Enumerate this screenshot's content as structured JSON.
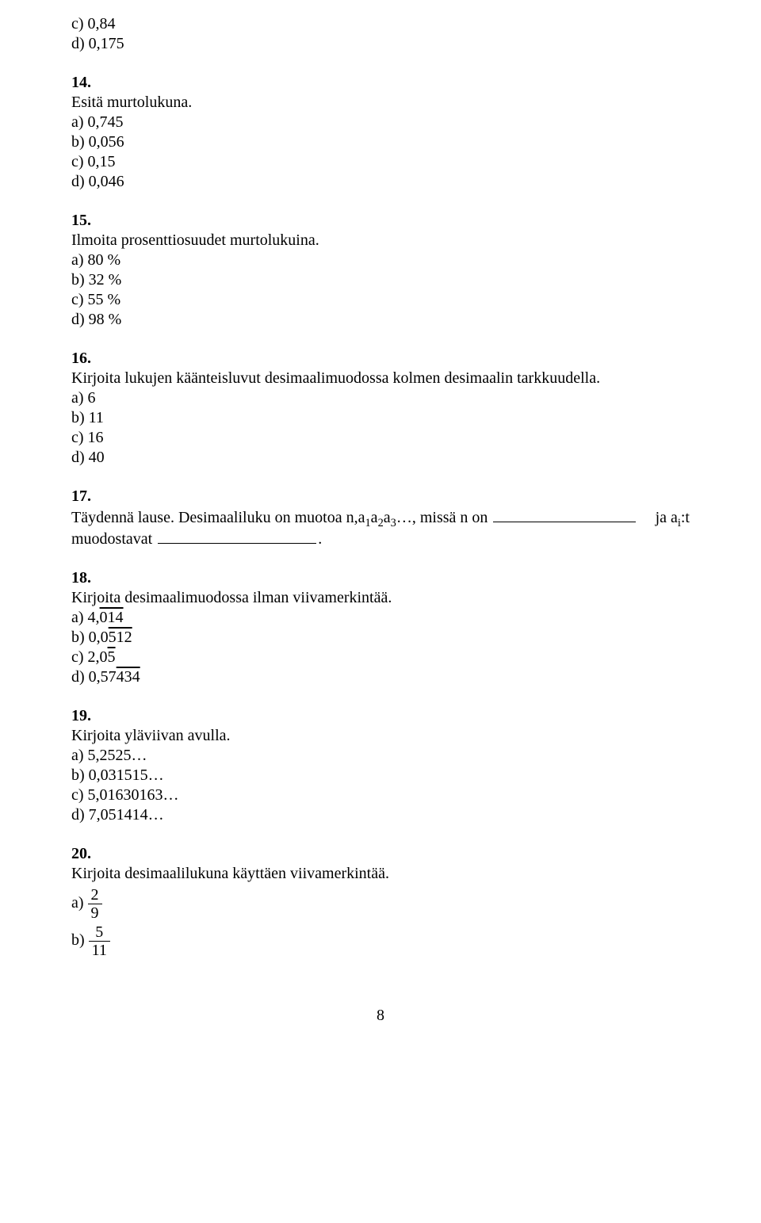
{
  "pre": {
    "c": "c)  0,84",
    "d": "d)  0,175"
  },
  "q14": {
    "num": "14.",
    "title": "Esitä murtolukuna.",
    "a": "a)  0,745",
    "b": "b)  0,056",
    "c": "c)  0,15",
    "d": "d)  0,046"
  },
  "q15": {
    "num": "15.",
    "title": "Ilmoita prosenttiosuudet murtolukuina.",
    "a": "a)  80 %",
    "b": "b)  32 %",
    "c": "c)  55 %",
    "d": "d)  98 %"
  },
  "q16": {
    "num": "16.",
    "title": "Kirjoita lukujen käänteisluvut desimaalimuodossa kolmen desimaalin tarkkuudella.",
    "a": "a)  6",
    "b": "b)  11",
    "c": "c)  16",
    "d": "d)  40"
  },
  "q17": {
    "num": "17.",
    "lead": "Täydennä lause. Desimaaliluku on muotoa ",
    "expr_n": "n,",
    "expr_a1": "a",
    "s1": "1",
    "expr_a2": "a",
    "s2": "2",
    "expr_a3": "a",
    "s3": "3",
    "dots": "…",
    "mid": ", missä n on",
    "tail1": " ja a",
    "si": "i",
    "tail2": ":t",
    "line2a": "muodostavat ",
    "period": "."
  },
  "q18": {
    "num": "18.",
    "title": "Kirjoita desimaalimuodossa ilman viivamerkintää.",
    "a_pre": "a)  4,",
    "a_over": "014",
    "b_pre": "b)  0,0",
    "b_over": "512",
    "c_pre": "c)  2,0",
    "c_over": "5",
    "d_pre": "d)  0,57",
    "d_over": "434"
  },
  "q19": {
    "num": "19.",
    "title": "Kirjoita yläviivan avulla.",
    "a": "a)  5,2525…",
    "b": "b)  0,031515…",
    "c": "c)  5,01630163…",
    "d": "d)  7,051414…"
  },
  "q20": {
    "num": "20.",
    "title": "Kirjoita desimaalilukuna käyttäen viivamerkintää.",
    "a_label": "a)  ",
    "a_num": "2",
    "a_den": "9",
    "b_label": "b)  ",
    "b_num": "5",
    "b_den": "11"
  },
  "pagenum": "8"
}
